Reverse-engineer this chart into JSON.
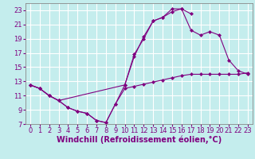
{
  "xlabel": "Windchill (Refroidissement éolien,°C)",
  "bg_color": "#c4eded",
  "grid_color": "#ffffff",
  "line_color": "#800080",
  "xlim": [
    -0.5,
    23.5
  ],
  "ylim": [
    7,
    24
  ],
  "xticks": [
    0,
    1,
    2,
    3,
    4,
    5,
    6,
    7,
    8,
    9,
    10,
    11,
    12,
    13,
    14,
    15,
    16,
    17,
    18,
    19,
    20,
    21,
    22,
    23
  ],
  "yticks": [
    7,
    9,
    11,
    13,
    15,
    17,
    19,
    21,
    23
  ],
  "series1_x": [
    0,
    1,
    2,
    3,
    4,
    5,
    6,
    7,
    8,
    9,
    10,
    11,
    12,
    13,
    14,
    15,
    16,
    17
  ],
  "series1_y": [
    12.5,
    12.0,
    11.0,
    10.3,
    9.3,
    8.8,
    8.5,
    7.5,
    7.2,
    9.8,
    12.5,
    16.8,
    19.0,
    21.5,
    22.0,
    23.2,
    23.2,
    22.5
  ],
  "series2_x": [
    0,
    1,
    2,
    3,
    10,
    11,
    12,
    13,
    14,
    15,
    16,
    17,
    18,
    19,
    20,
    21,
    22,
    23
  ],
  "series2_y": [
    12.5,
    12.0,
    11.0,
    10.3,
    12.5,
    16.5,
    19.3,
    21.5,
    22.0,
    22.8,
    23.2,
    20.2,
    19.5,
    20.0,
    19.5,
    16.0,
    14.5,
    14.0
  ],
  "series3_x": [
    0,
    1,
    2,
    3,
    4,
    5,
    6,
    7,
    8,
    9,
    10,
    11,
    12,
    13,
    14,
    15,
    16,
    17,
    18,
    19,
    20,
    21,
    22,
    23
  ],
  "series3_y": [
    12.5,
    12.0,
    11.0,
    10.3,
    9.3,
    8.8,
    8.5,
    7.5,
    7.2,
    9.8,
    12.0,
    12.3,
    12.6,
    12.9,
    13.2,
    13.5,
    13.8,
    14.0,
    14.0,
    14.0,
    14.0,
    14.0,
    14.0,
    14.2
  ],
  "xlabel_fontsize": 7,
  "tick_fontsize": 6
}
